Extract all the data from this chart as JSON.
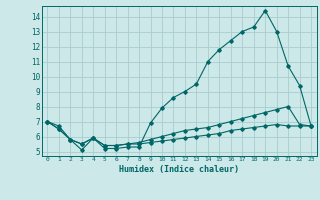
{
  "title": "",
  "xlabel": "Humidex (Indice chaleur)",
  "background_color": "#cce8e8",
  "grid_color": "#aacccc",
  "line_color": "#006666",
  "xlim": [
    -0.5,
    23.5
  ],
  "ylim": [
    4.7,
    14.7
  ],
  "yticks": [
    5,
    6,
    7,
    8,
    9,
    10,
    11,
    12,
    13,
    14
  ],
  "xticks": [
    0,
    1,
    2,
    3,
    4,
    5,
    6,
    7,
    8,
    9,
    10,
    11,
    12,
    13,
    14,
    15,
    16,
    17,
    18,
    19,
    20,
    21,
    22,
    23
  ],
  "series1_x": [
    0,
    1,
    2,
    3,
    4,
    5,
    6,
    7,
    8,
    9,
    10,
    11,
    12,
    13,
    14,
    15,
    16,
    17,
    18,
    19,
    20,
    21,
    22,
    23
  ],
  "series1_y": [
    7.0,
    6.7,
    5.8,
    5.1,
    5.9,
    5.2,
    5.2,
    5.3,
    5.3,
    6.9,
    7.9,
    8.6,
    9.0,
    9.5,
    11.0,
    11.8,
    12.4,
    13.0,
    13.3,
    14.4,
    13.0,
    10.7,
    9.4,
    6.7
  ],
  "series2_x": [
    0,
    1,
    2,
    3,
    4,
    5,
    6,
    7,
    8,
    9,
    10,
    11,
    12,
    13,
    14,
    15,
    16,
    17,
    18,
    19,
    20,
    21,
    22,
    23
  ],
  "series2_y": [
    7.0,
    6.5,
    5.8,
    5.5,
    5.9,
    5.4,
    5.4,
    5.5,
    5.6,
    5.8,
    6.0,
    6.2,
    6.4,
    6.5,
    6.6,
    6.8,
    7.0,
    7.2,
    7.4,
    7.6,
    7.8,
    8.0,
    6.8,
    6.7
  ],
  "series3_x": [
    0,
    1,
    2,
    3,
    4,
    5,
    6,
    7,
    8,
    9,
    10,
    11,
    12,
    13,
    14,
    15,
    16,
    17,
    18,
    19,
    20,
    21,
    22,
    23
  ],
  "series3_y": [
    7.0,
    6.5,
    5.8,
    5.5,
    5.9,
    5.4,
    5.4,
    5.5,
    5.5,
    5.6,
    5.7,
    5.8,
    5.9,
    6.0,
    6.1,
    6.2,
    6.4,
    6.5,
    6.6,
    6.7,
    6.8,
    6.7,
    6.7,
    6.7
  ]
}
